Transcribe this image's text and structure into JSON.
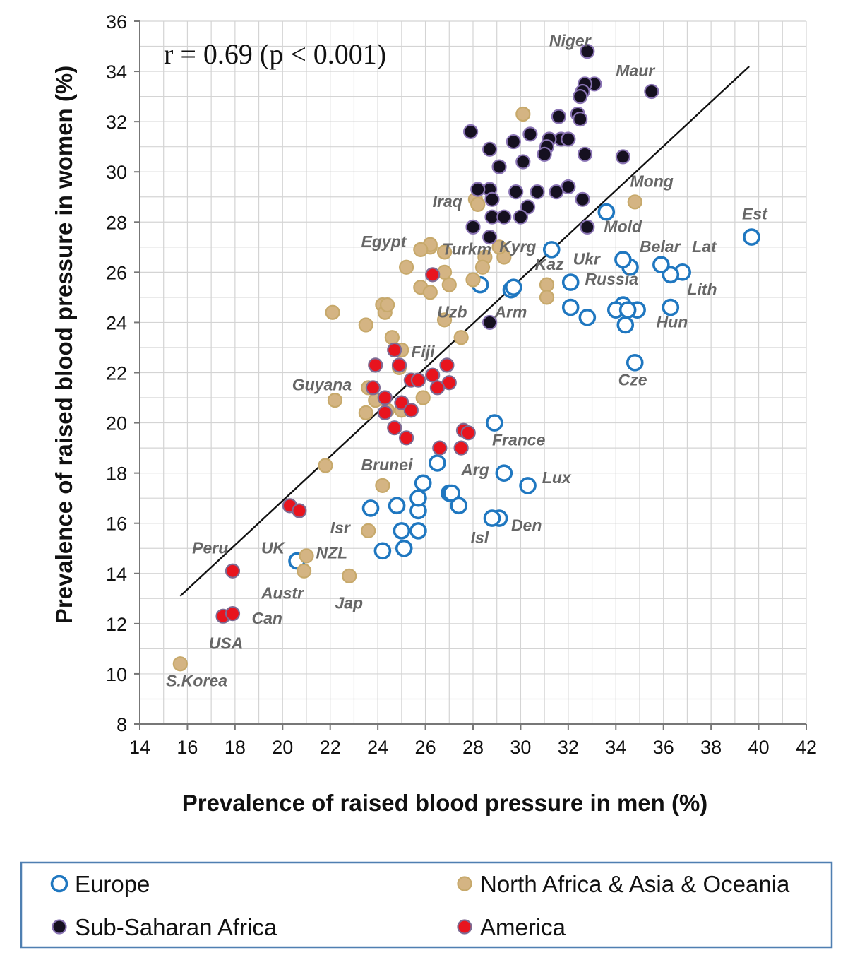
{
  "chart_data": {
    "type": "scatter",
    "title": "",
    "xlabel": "Prevalence of raised blood pressure in men (%)",
    "ylabel": "Prevalence of raised blood pressure in women (%)",
    "xlim": [
      14,
      42
    ],
    "ylim": [
      8,
      36
    ],
    "xticks": [
      "14",
      "16",
      "18",
      "20",
      "22",
      "24",
      "26",
      "28",
      "30",
      "32",
      "34",
      "36",
      "38",
      "40",
      "42"
    ],
    "yticks": [
      "8",
      "10",
      "12",
      "14",
      "16",
      "18",
      "20",
      "22",
      "24",
      "26",
      "28",
      "30",
      "32",
      "34",
      "36"
    ],
    "grid": true,
    "annotation": "r = 0.69 (p < 0.001)",
    "trendline": {
      "x": [
        15.7,
        39.6
      ],
      "y": [
        13.1,
        34.2
      ]
    },
    "legend_position": "bottom",
    "series": [
      {
        "name": "Europe",
        "color": "#1f77c0",
        "style": "hollow",
        "points": [
          [
            39.7,
            27.4
          ],
          [
            36.8,
            26.0
          ],
          [
            36.3,
            25.9
          ],
          [
            35.9,
            26.3
          ],
          [
            36.3,
            24.6
          ],
          [
            34.6,
            26.2
          ],
          [
            34.3,
            26.5
          ],
          [
            34.9,
            24.5
          ],
          [
            34.3,
            24.7
          ],
          [
            34.0,
            24.5
          ],
          [
            34.5,
            24.5
          ],
          [
            34.4,
            23.9
          ],
          [
            34.8,
            22.4
          ],
          [
            33.6,
            28.4
          ],
          [
            32.8,
            24.2
          ],
          [
            32.1,
            24.6
          ],
          [
            32.1,
            25.6
          ],
          [
            31.3,
            26.9
          ],
          [
            29.6,
            25.3
          ],
          [
            29.7,
            25.4
          ],
          [
            28.3,
            25.5
          ],
          [
            28.9,
            20.0
          ],
          [
            29.3,
            18.0
          ],
          [
            30.3,
            17.5
          ],
          [
            29.1,
            16.2
          ],
          [
            28.8,
            16.2
          ],
          [
            26.5,
            18.4
          ],
          [
            25.9,
            17.6
          ],
          [
            27.0,
            17.2
          ],
          [
            27.1,
            17.2
          ],
          [
            27.4,
            16.7
          ],
          [
            25.7,
            16.5
          ],
          [
            25.7,
            17.0
          ],
          [
            25.7,
            15.7
          ],
          [
            24.8,
            16.7
          ],
          [
            23.7,
            16.6
          ],
          [
            25.0,
            15.7
          ],
          [
            25.1,
            15.0
          ],
          [
            24.2,
            14.9
          ],
          [
            20.6,
            14.5
          ]
        ]
      },
      {
        "name": "North Africa & Asia & Oceania",
        "color": "#d4b483",
        "style": "filled",
        "points": [
          [
            30.1,
            32.3
          ],
          [
            34.8,
            28.8
          ],
          [
            28.1,
            28.9
          ],
          [
            28.2,
            28.7
          ],
          [
            26.2,
            27.0
          ],
          [
            26.2,
            27.1
          ],
          [
            25.8,
            26.9
          ],
          [
            26.8,
            26.8
          ],
          [
            28.5,
            26.6
          ],
          [
            29.3,
            26.6
          ],
          [
            29.1,
            27.0
          ],
          [
            28.4,
            26.2
          ],
          [
            26.8,
            26.0
          ],
          [
            25.2,
            26.2
          ],
          [
            27.0,
            25.5
          ],
          [
            25.8,
            25.4
          ],
          [
            26.2,
            25.2
          ],
          [
            28.0,
            25.7
          ],
          [
            31.1,
            25.5
          ],
          [
            31.1,
            25.0
          ],
          [
            24.2,
            24.7
          ],
          [
            24.3,
            24.4
          ],
          [
            24.4,
            24.7
          ],
          [
            26.8,
            24.1
          ],
          [
            22.1,
            24.4
          ],
          [
            23.5,
            23.9
          ],
          [
            24.6,
            23.4
          ],
          [
            27.5,
            23.4
          ],
          [
            25.0,
            22.9
          ],
          [
            24.9,
            22.2
          ],
          [
            23.6,
            21.4
          ],
          [
            23.9,
            20.9
          ],
          [
            25.9,
            21.0
          ],
          [
            24.4,
            20.5
          ],
          [
            23.5,
            20.4
          ],
          [
            25.0,
            20.5
          ],
          [
            22.2,
            20.9
          ],
          [
            21.8,
            18.3
          ],
          [
            24.2,
            17.5
          ],
          [
            23.6,
            15.7
          ],
          [
            21.0,
            14.7
          ],
          [
            20.9,
            14.1
          ],
          [
            22.8,
            13.9
          ],
          [
            15.7,
            10.4
          ]
        ]
      },
      {
        "name": "Sub-Saharan Africa",
        "color": "#151020",
        "style": "filled",
        "points": [
          [
            32.8,
            34.8
          ],
          [
            35.5,
            33.2
          ],
          [
            33.1,
            33.5
          ],
          [
            32.7,
            33.5
          ],
          [
            32.6,
            33.2
          ],
          [
            32.5,
            33.0
          ],
          [
            32.4,
            32.3
          ],
          [
            32.5,
            32.1
          ],
          [
            31.6,
            32.2
          ],
          [
            30.4,
            31.5
          ],
          [
            27.9,
            31.6
          ],
          [
            29.7,
            31.2
          ],
          [
            31.7,
            31.3
          ],
          [
            32.0,
            31.3
          ],
          [
            31.2,
            31.3
          ],
          [
            31.1,
            31.0
          ],
          [
            31.0,
            30.7
          ],
          [
            28.7,
            30.9
          ],
          [
            32.7,
            30.7
          ],
          [
            34.3,
            30.6
          ],
          [
            30.1,
            30.4
          ],
          [
            29.1,
            30.2
          ],
          [
            32.0,
            29.4
          ],
          [
            31.5,
            29.2
          ],
          [
            30.7,
            29.2
          ],
          [
            29.8,
            29.2
          ],
          [
            28.7,
            29.3
          ],
          [
            28.2,
            29.3
          ],
          [
            28.8,
            28.9
          ],
          [
            32.6,
            28.9
          ],
          [
            30.3,
            28.6
          ],
          [
            28.8,
            28.2
          ],
          [
            29.3,
            28.2
          ],
          [
            30.0,
            28.2
          ],
          [
            28.0,
            27.8
          ],
          [
            32.8,
            27.8
          ],
          [
            28.7,
            27.4
          ],
          [
            28.7,
            24.0
          ]
        ]
      },
      {
        "name": "America",
        "color": "#e8141e",
        "style": "filled",
        "points": [
          [
            26.3,
            25.9
          ],
          [
            24.7,
            22.9
          ],
          [
            23.9,
            22.3
          ],
          [
            24.9,
            22.3
          ],
          [
            26.9,
            22.3
          ],
          [
            26.3,
            21.9
          ],
          [
            25.4,
            21.7
          ],
          [
            25.7,
            21.7
          ],
          [
            27.0,
            21.6
          ],
          [
            26.5,
            21.4
          ],
          [
            23.8,
            21.4
          ],
          [
            24.3,
            21.0
          ],
          [
            25.0,
            20.8
          ],
          [
            25.4,
            20.5
          ],
          [
            24.3,
            20.4
          ],
          [
            24.7,
            19.8
          ],
          [
            25.2,
            19.4
          ],
          [
            27.6,
            19.7
          ],
          [
            27.8,
            19.6
          ],
          [
            26.6,
            19.0
          ],
          [
            27.5,
            19.0
          ],
          [
            20.3,
            16.7
          ],
          [
            20.7,
            16.5
          ],
          [
            17.9,
            14.1
          ],
          [
            17.5,
            12.3
          ],
          [
            17.9,
            12.4
          ]
        ]
      }
    ],
    "point_labels": [
      {
        "text": "Niger",
        "x": 31.2,
        "y": 35.0
      },
      {
        "text": "Maur",
        "x": 34.0,
        "y": 33.8
      },
      {
        "text": "Mong",
        "x": 34.6,
        "y": 29.4
      },
      {
        "text": "Est",
        "x": 39.3,
        "y": 28.1
      },
      {
        "text": "Iraq",
        "x": 26.3,
        "y": 28.6
      },
      {
        "text": "Mold",
        "x": 33.5,
        "y": 27.6
      },
      {
        "text": "Egypt",
        "x": 23.3,
        "y": 27.0
      },
      {
        "text": "Turkm",
        "x": 26.7,
        "y": 26.7
      },
      {
        "text": "Kyrg",
        "x": 29.1,
        "y": 26.8
      },
      {
        "text": "Belar",
        "x": 35.0,
        "y": 26.8
      },
      {
        "text": "Lat",
        "x": 37.2,
        "y": 26.8
      },
      {
        "text": "Kaz",
        "x": 30.6,
        "y": 26.1
      },
      {
        "text": "Ukr",
        "x": 32.2,
        "y": 26.3
      },
      {
        "text": "Russia",
        "x": 32.7,
        "y": 25.5
      },
      {
        "text": "Lith",
        "x": 37.0,
        "y": 25.1
      },
      {
        "text": "Uzb",
        "x": 26.5,
        "y": 24.2
      },
      {
        "text": "Arm",
        "x": 28.9,
        "y": 24.2
      },
      {
        "text": "Hun",
        "x": 35.7,
        "y": 23.8
      },
      {
        "text": "Fiji",
        "x": 25.4,
        "y": 22.6
      },
      {
        "text": "Cze",
        "x": 34.1,
        "y": 21.5
      },
      {
        "text": "Guyana",
        "x": 20.4,
        "y": 21.3
      },
      {
        "text": "France",
        "x": 28.8,
        "y": 19.1
      },
      {
        "text": "Brunei",
        "x": 23.3,
        "y": 18.1
      },
      {
        "text": "Arg",
        "x": 27.5,
        "y": 17.9
      },
      {
        "text": "Lux",
        "x": 30.9,
        "y": 17.6
      },
      {
        "text": "Isr",
        "x": 22.0,
        "y": 15.6
      },
      {
        "text": "Den",
        "x": 29.6,
        "y": 15.7
      },
      {
        "text": "Isl",
        "x": 27.9,
        "y": 15.2
      },
      {
        "text": "Peru",
        "x": 16.2,
        "y": 14.8
      },
      {
        "text": "UK",
        "x": 19.1,
        "y": 14.8
      },
      {
        "text": "NZL",
        "x": 21.4,
        "y": 14.6
      },
      {
        "text": "Austr",
        "x": 19.1,
        "y": 13.0
      },
      {
        "text": "Jap",
        "x": 22.2,
        "y": 12.6
      },
      {
        "text": "Can",
        "x": 18.7,
        "y": 12.0
      },
      {
        "text": "USA",
        "x": 16.9,
        "y": 11.0
      },
      {
        "text": "S.Korea",
        "x": 15.1,
        "y": 9.5
      }
    ]
  }
}
